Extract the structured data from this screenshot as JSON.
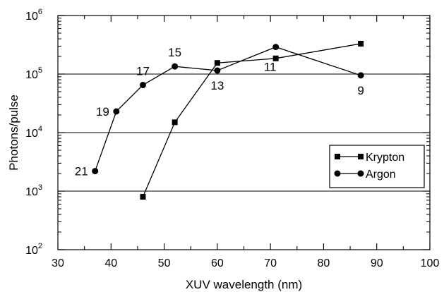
{
  "chart_data": {
    "type": "line",
    "title": "",
    "xlabel": "XUV wavelength (nm)",
    "ylabel": "Photons/pulse",
    "xlim": [
      30,
      100
    ],
    "ylim": [
      100,
      1000000
    ],
    "y_scale": "log",
    "grid": "horizontal lines at each decade",
    "legend_position": "bottom-right",
    "x_ticks": [
      30,
      40,
      50,
      60,
      70,
      80,
      90,
      100
    ],
    "x_tick_labels": [
      "30",
      "40",
      "50",
      "60",
      "70",
      "80",
      "90",
      "100"
    ],
    "y_ticks": [
      {
        "value": 100,
        "base": "10",
        "exp": "2"
      },
      {
        "value": 1000,
        "base": "10",
        "exp": "3"
      },
      {
        "value": 10000,
        "base": "10",
        "exp": "4"
      },
      {
        "value": 100000,
        "base": "10",
        "exp": "5"
      },
      {
        "value": 1000000,
        "base": "10",
        "exp": "6"
      }
    ],
    "series": [
      {
        "name": "Krypton",
        "marker": "square",
        "x": [
          46,
          52,
          60,
          71,
          87
        ],
        "y": [
          800,
          15000,
          155000,
          185000,
          330000
        ]
      },
      {
        "name": "Argon",
        "marker": "circle",
        "x": [
          37,
          41,
          46,
          52,
          60,
          71,
          87
        ],
        "y": [
          2200,
          23000,
          65000,
          135000,
          115000,
          290000,
          95000
        ]
      }
    ],
    "annotations": [
      {
        "text": "21",
        "x": 37,
        "y": 2200,
        "anchor": "left"
      },
      {
        "text": "19",
        "x": 41,
        "y": 23000,
        "anchor": "left"
      },
      {
        "text": "17",
        "x": 46,
        "y": 65000,
        "anchor": "above"
      },
      {
        "text": "15",
        "x": 52,
        "y": 135000,
        "anchor": "above"
      },
      {
        "text": "13",
        "x": 60,
        "y": 115000,
        "anchor": "below"
      },
      {
        "text": "11",
        "x": 71,
        "y": 290000,
        "anchor": "below-far"
      },
      {
        "text": "9",
        "x": 87,
        "y": 95000,
        "anchor": "below"
      }
    ]
  }
}
